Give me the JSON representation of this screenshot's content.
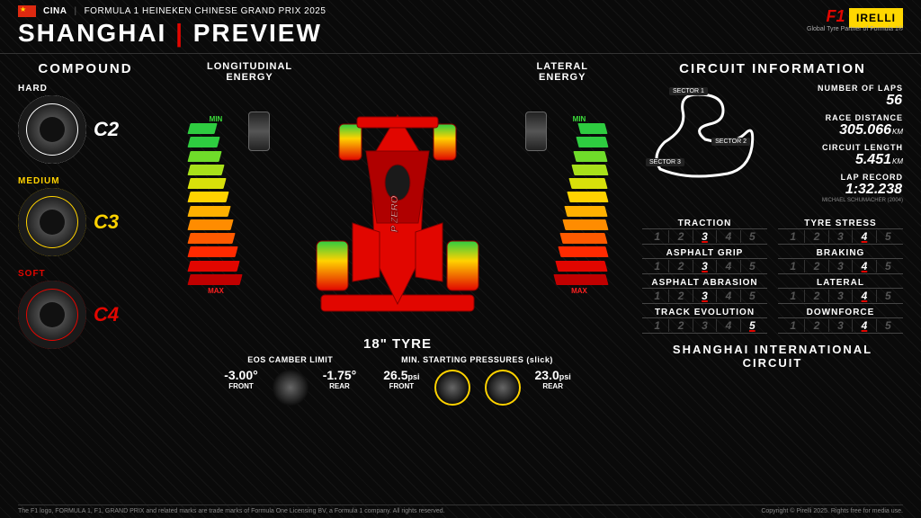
{
  "header": {
    "country_code": "CINA",
    "event_name": "FORMULA 1 HEINEKEN CHINESE GRAND PRIX 2025",
    "title_city": "SHANGHAI",
    "title_word": "PREVIEW",
    "f1_logo_text": "F1",
    "pirelli_logo_text": "IRELLI",
    "tagline": "Global Tyre Partner of Formula 1®"
  },
  "compound": {
    "title": "COMPOUND",
    "tyres": [
      {
        "label": "HARD",
        "code": "C2",
        "ring_color": "#ffffff",
        "label_color": "#ffffff"
      },
      {
        "label": "MEDIUM",
        "code": "C3",
        "ring_color": "#ffd200",
        "label_color": "#ffd200"
      },
      {
        "label": "SOFT",
        "code": "C4",
        "ring_color": "#e10600",
        "label_color": "#e10600"
      }
    ]
  },
  "center": {
    "longitudinal_label": "LONGITUDINAL\nENERGY",
    "lateral_label": "LATERAL\nENERGY",
    "min_label": "MIN",
    "max_label": "MAX",
    "car_color": "#e10600",
    "gauge_colors": [
      "#2ecc40",
      "#2ecc40",
      "#6fdc2a",
      "#a8e01a",
      "#d8e00a",
      "#ffd200",
      "#ffb000",
      "#ff8c00",
      "#ff5a00",
      "#ff2a00",
      "#e10600",
      "#c00000"
    ],
    "eighteen_label": "18\" TYRE",
    "camber": {
      "title": "EOS CAMBER LIMIT",
      "front_val": "-3.00°",
      "front_lbl": "FRONT",
      "rear_val": "-1.75°",
      "rear_lbl": "REAR"
    },
    "pressure": {
      "title": "MIN. STARTING PRESSURES (slick)",
      "front_val": "26.5",
      "front_unit": "psi",
      "front_lbl": "FRONT",
      "rear_val": "23.0",
      "rear_unit": "psi",
      "rear_lbl": "REAR"
    }
  },
  "circuit": {
    "title": "CIRCUIT INFORMATION",
    "sectors": [
      "SECTOR 1",
      "SECTOR 2",
      "SECTOR 3"
    ],
    "stats": [
      {
        "lbl": "NUMBER OF LAPS",
        "val": "56",
        "unit": ""
      },
      {
        "lbl": "RACE DISTANCE",
        "val": "305.066",
        "unit": "KM"
      },
      {
        "lbl": "CIRCUIT LENGTH",
        "val": "5.451",
        "unit": "KM"
      },
      {
        "lbl": "LAP RECORD",
        "val": "1:32.238",
        "unit": "",
        "note": "MICHAEL SCHUMACHER (2004)"
      }
    ],
    "ratings": [
      {
        "lbl": "TRACTION",
        "val": 3
      },
      {
        "lbl": "TYRE STRESS",
        "val": 4
      },
      {
        "lbl": "ASPHALT GRIP",
        "val": 3
      },
      {
        "lbl": "BRAKING",
        "val": 4
      },
      {
        "lbl": "ASPHALT ABRASION",
        "val": 3
      },
      {
        "lbl": "LATERAL",
        "val": 4
      },
      {
        "lbl": "TRACK EVOLUTION",
        "val": 5
      },
      {
        "lbl": "DOWNFORCE",
        "val": 4
      }
    ],
    "circuit_name": "SHANGHAI INTERNATIONAL CIRCUIT"
  },
  "footer": {
    "left": "The F1 logo, FORMULA 1, F1, GRAND PRIX and related marks are trade marks of Formula One Licensing BV, a Formula 1 company. All rights reserved.",
    "right": "Copyright © Pirelli 2025. Rights free for media use."
  }
}
